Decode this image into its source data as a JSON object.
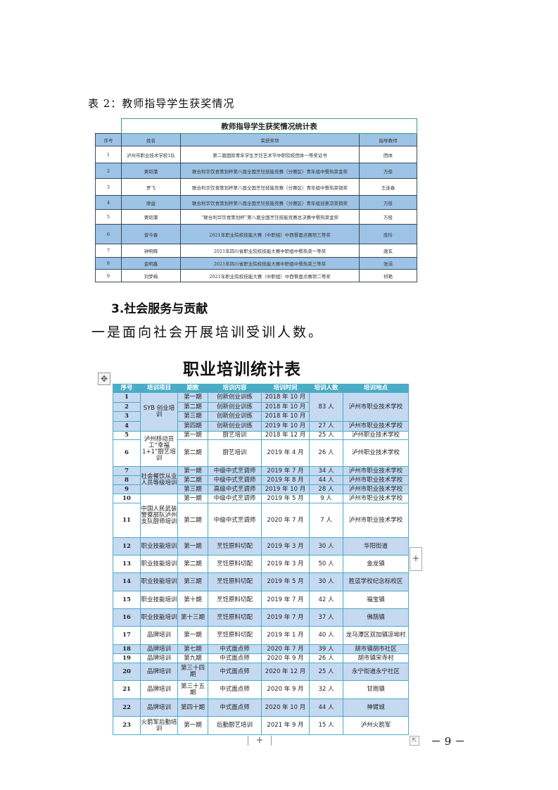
{
  "caption": "表 2：教师指导学生获奖情况",
  "table1": {
    "title": "教师指导学生获奖情况统计表",
    "headers": [
      "序号",
      "姓名",
      "荣获奖项",
      "指导教师"
    ],
    "rows": [
      [
        "1",
        "泸州市职业技术学校1队",
        "第二届国际青年学生烹饪艺术节中职院校团体一等奖证书",
        "团体"
      ],
      [
        "2",
        "黄韬蒲",
        "联合利华饮食策划杯第八届全国烹饪技能竞赛（分赛区）青年组中餐热菜金奖",
        "万俊"
      ],
      [
        "3",
        "罗飞",
        "联合利华饮食策划杯第八届全国烹饪技能竞赛（分赛区）青年组中餐热菜银奖",
        "王连春"
      ],
      [
        "4",
        "廖益",
        "联合利华饮食策划杯第八届全国烹饪技能竞赛（分赛区）青年组创意凉菜铜奖",
        "万俊"
      ],
      [
        "5",
        "黄韬蒲",
        "“联合利华饮食策划杯”第八届全国烹饪技能竞赛总决赛中餐热菜金奖",
        "万俊"
      ],
      [
        "6",
        "曾今春",
        "2021年职业院校技能大赛（中职组）中西餐面点赛项三等奖",
        "庞玲"
      ],
      [
        "7",
        "钟明辉",
        "2021年四川省职业院校技能大赛中职组中餐热菜一等奖",
        "唐玄"
      ],
      [
        "8",
        "金明鑫",
        "2021年四川省职业院校技能大赛中职组中餐热菜三等奖",
        "张涓"
      ],
      [
        "9",
        "刘梦梅",
        "2021年职业院校技能大赛（中职组）中西餐面点赛项二等奖",
        "何艳"
      ]
    ]
  },
  "section_heading": "3.社会服务与贡献",
  "paragraph": "一是面向社会开展培训受训人数。",
  "table2": {
    "title": "职业培训统计表",
    "headers": [
      "序号",
      "培训项目",
      "期数",
      "培训内容",
      "培训时间",
      "培训人数",
      "培训地点"
    ],
    "rows": [
      {
        "no": "1",
        "project": "SYB 创业培训",
        "period": "第一期",
        "content": "创新创业训练",
        "time": "2018 年 10 月",
        "count": "83 人",
        "location": "泸州市职业技术学校"
      },
      {
        "no": "2",
        "period": "第二期",
        "content": "创新创业训练",
        "time": "2018 年 10 月"
      },
      {
        "no": "3",
        "period": "第三期",
        "content": "创新创业训练",
        "time": "2018 年 10 月"
      },
      {
        "no": "4",
        "period": "第四期",
        "content": "创新创业训练",
        "time": "2019 年 10 月",
        "count": "27 人",
        "location": "泸州市职业技术学校"
      },
      {
        "no": "5",
        "project": "泸州移动员工“幸福 1+1”厨艺培训",
        "period": "第一期",
        "content": "厨艺培训",
        "time": "2018 年 12 月",
        "count": "25 人",
        "location": "泸州职业技术学校"
      },
      {
        "no": "6",
        "period": "第二期",
        "content": "厨艺培训",
        "time": "2019 年 4 月",
        "count": "26 人",
        "location": "泸州职业技术学校"
      },
      {
        "no": "7",
        "project": "社会餐饮从业人员等级培训",
        "period": "第一期",
        "content": "中级中式烹调师",
        "time": "2019 年 7 月",
        "count": "34 人",
        "location": "泸州市职业技术学校"
      },
      {
        "no": "8",
        "period": "第二期",
        "content": "中级中式烹调师",
        "time": "2019 年 8 月",
        "count": "44 人",
        "location": "泸州市职业技术学校"
      },
      {
        "no": "9",
        "period": "第三期",
        "content": "高级中式烹调师",
        "time": "2019 年 10 月",
        "count": "28 人",
        "location": "泸州市职业技术学校"
      },
      {
        "no": "10",
        "project": "中国人民武装警察部队泸州支队厨师培训",
        "period": "第一期",
        "content": "中级中式烹调师",
        "time": "2019 年 5 月",
        "count": "9 人",
        "location": "泸州市职业技术学校"
      },
      {
        "no": "11",
        "period": "第二期",
        "content": "中级中式烹调师",
        "time": "2020 年 7 月",
        "count": "7 人",
        "location": "泸州市职业技术学校"
      },
      {
        "no": "12",
        "project": "职业技能培训",
        "period": "第一期",
        "content": "烹饪原料切配",
        "time": "2019 年 3 月",
        "count": "30 人",
        "location": "华阳街道"
      },
      {
        "no": "13",
        "project": "职业技能培训",
        "period": "第二期",
        "content": "烹饪原料切配",
        "time": "2019 年 3 月",
        "count": "50 人",
        "location": "金龙镇"
      },
      {
        "no": "14",
        "project": "职业技能培训",
        "period": "第三期",
        "content": "烹饪原料切配",
        "time": "2019 年 5 月",
        "count": "30 人",
        "location": "胜蓝学校纪念标校区"
      },
      {
        "no": "15",
        "project": "职业技能培训",
        "period": "第十期",
        "content": "烹饪原料切配",
        "time": "2019 年 7 月",
        "count": "42 人",
        "location": "福宝镇"
      },
      {
        "no": "16",
        "project": "职业技能培训",
        "period": "第十三期",
        "content": "烹饪原料切配",
        "time": "2019 年 7 月",
        "count": "37 人",
        "location": "佛荫镇"
      },
      {
        "no": "17",
        "project": "品牌培训",
        "period": "第一期",
        "content": "烹饪原料切配",
        "time": "2019 年 1 月",
        "count": "40 人",
        "location": "龙马潭区双加镇凉坳村"
      },
      {
        "no": "18",
        "project": "品牌培训",
        "period": "第七期",
        "content": "中式面点师",
        "time": "2020 年 7 月",
        "count": "39 人",
        "location": "胡市镇胡市社区"
      },
      {
        "no": "19",
        "project": "品牌培训",
        "period": "第九期",
        "content": "中式面点师",
        "time": "2020 年 9 月",
        "count": "26 人",
        "location": "胡市镇宋寺村"
      },
      {
        "no": "20",
        "project": "品牌培训",
        "period": "第三十四期",
        "content": "中式面点师",
        "time": "2020 年 12 月",
        "count": "25 人",
        "location": "永宁街道永宁社区"
      },
      {
        "no": "21",
        "project": "品牌培训",
        "period": "第三十五期",
        "content": "中式面点师",
        "time": "2020 年 9 月",
        "count": "32 人",
        "location": "甘雨镇"
      },
      {
        "no": "22",
        "project": "品牌培训",
        "period": "第四十期",
        "content": "中式面点师",
        "time": "2020 年 10 月",
        "count": "44 人",
        "location": "神臂城"
      },
      {
        "no": "23",
        "project": "火箭军后勤培训",
        "period": "第一期",
        "content": "后勤厨艺培训",
        "time": "2021 年 9 月",
        "count": "15 人",
        "location": "泸州火箭军"
      }
    ]
  },
  "controls": {
    "move_icon": "✥",
    "plus": "+",
    "resize_icon": "⇱"
  },
  "page_number": "－ 9 －",
  "colors": {
    "table1_band": "#9dc3e6",
    "table2_header": "#4bacc6",
    "table2_band": "#c5d9f1"
  }
}
